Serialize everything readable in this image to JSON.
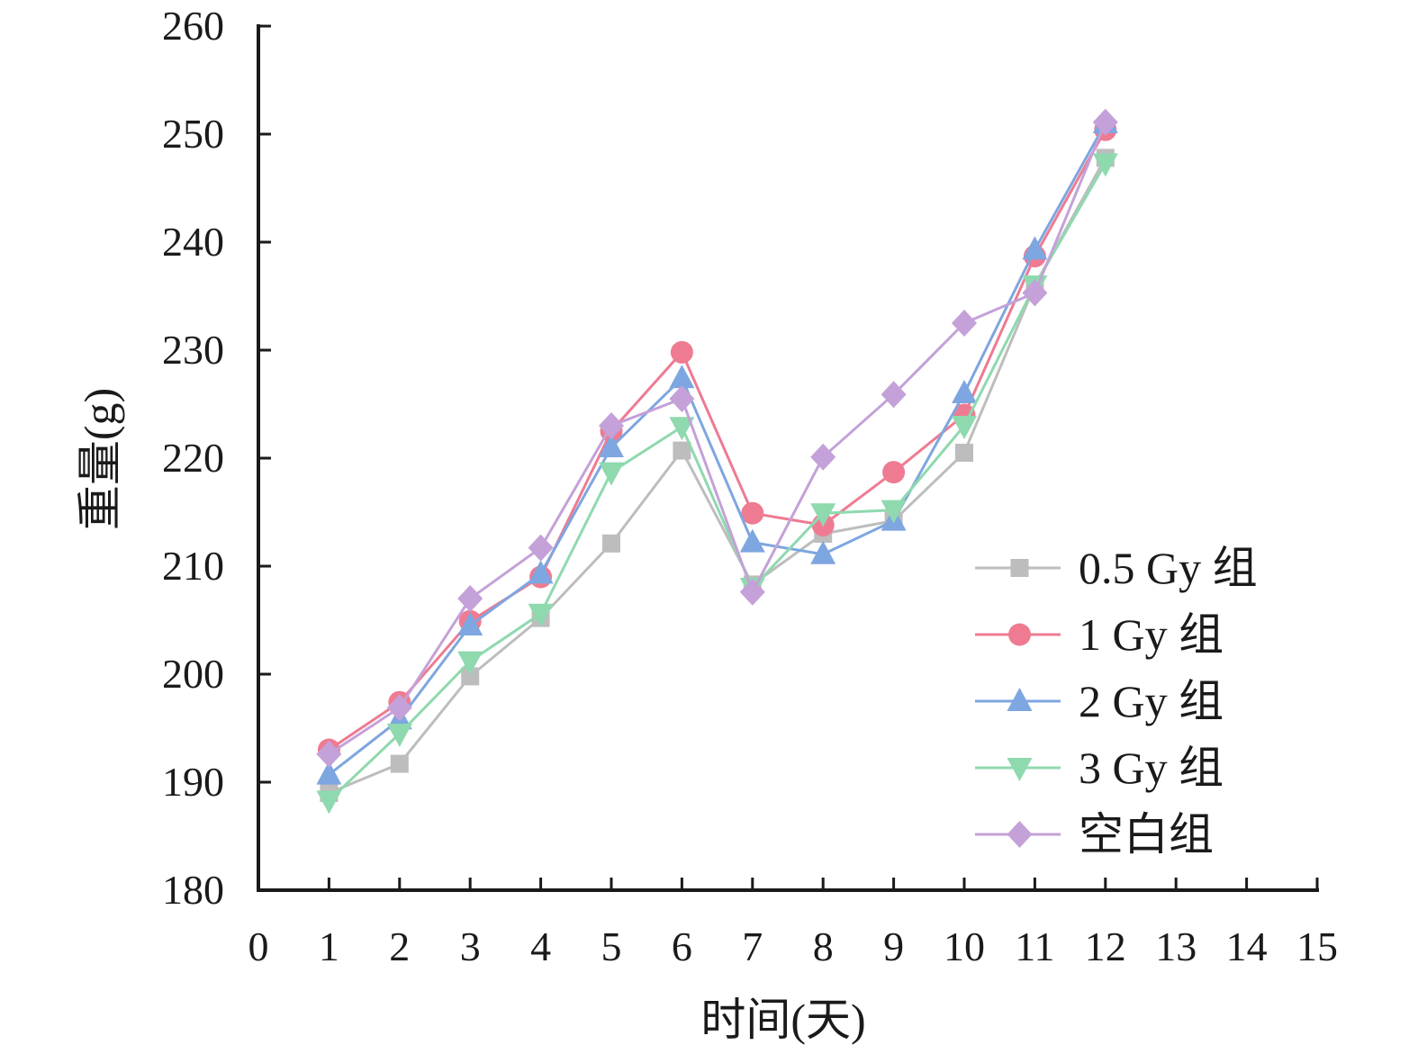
{
  "chart_data": {
    "type": "line",
    "title": "",
    "xlabel": "时间(天)",
    "ylabel": "重量(g)",
    "xlim": [
      0,
      15
    ],
    "ylim": [
      180,
      260
    ],
    "xticks": [
      "0",
      "1",
      "2",
      "3",
      "4",
      "5",
      "6",
      "7",
      "8",
      "9",
      "10",
      "11",
      "12",
      "13",
      "14",
      "15"
    ],
    "yticks": [
      "180",
      "190",
      "200",
      "210",
      "220",
      "230",
      "240",
      "250",
      "260"
    ],
    "x": [
      1,
      2,
      3,
      4,
      5,
      6,
      7,
      8,
      9,
      10,
      11,
      12
    ],
    "grid": false,
    "legend_position": "right",
    "series": [
      {
        "name": "0.5 Gy 组",
        "color": "#bdbdbd",
        "marker": "square",
        "values": [
          189.0,
          191.7,
          199.8,
          205.2,
          212.1,
          220.7,
          208.3,
          213.0,
          214.2,
          220.5,
          236.0,
          247.8
        ]
      },
      {
        "name": "1 Gy 组",
        "color": "#ee7b92",
        "marker": "circle",
        "values": [
          193.0,
          197.4,
          204.9,
          209.0,
          222.5,
          229.8,
          214.9,
          213.8,
          218.7,
          224.0,
          238.7,
          250.4
        ]
      },
      {
        "name": "2 Gy 组",
        "color": "#7ea6e0",
        "marker": "triangle-up",
        "values": [
          190.7,
          195.8,
          204.5,
          209.3,
          221.0,
          227.4,
          212.2,
          211.1,
          214.2,
          226.0,
          239.3,
          251.0
        ]
      },
      {
        "name": "3 Gy 组",
        "color": "#8fd9ae",
        "marker": "triangle-down",
        "values": [
          188.3,
          194.5,
          201.2,
          205.6,
          218.7,
          222.9,
          208.0,
          214.9,
          215.2,
          223.0,
          236.0,
          247.3
        ]
      },
      {
        "name": "空白组",
        "color": "#c4a1d8",
        "marker": "diamond",
        "values": [
          192.6,
          196.9,
          207.0,
          211.7,
          223.0,
          225.5,
          207.6,
          220.1,
          225.9,
          232.5,
          235.3,
          251.1
        ]
      }
    ]
  }
}
